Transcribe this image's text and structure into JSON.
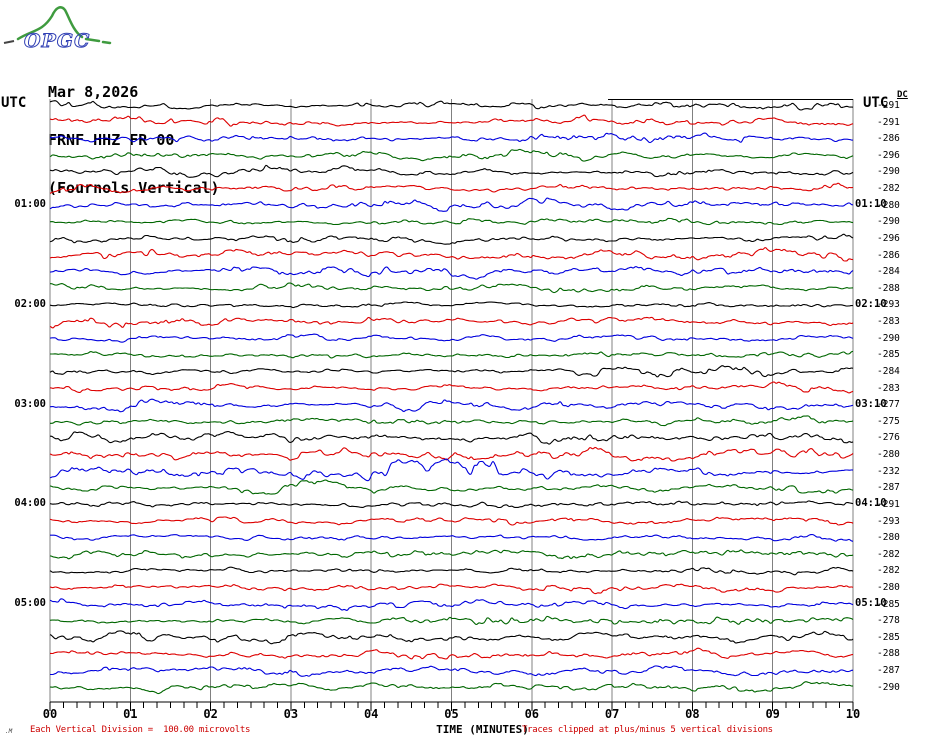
{
  "logo": {
    "text": "OPGC"
  },
  "header": {
    "date": "Mar 8,2026",
    "station": "FRNF HHZ FR 00",
    "location": "(Fournols Vertical)"
  },
  "axis": {
    "utc_left": "UTC",
    "utc_right": "UTC",
    "dc_label": "DC",
    "x_title": "TIME (MINUTES)",
    "x_ticks": [
      "00",
      "01",
      "02",
      "03",
      "04",
      "05",
      "06",
      "07",
      "08",
      "09",
      "10"
    ],
    "minor_ticks_per_major": 5
  },
  "footer": {
    "left": "Each Vertical Division =  100.00 microvolts",
    "right": "Traces clipped at plus/minus 5 vertical divisions",
    "mark": ".M"
  },
  "chart_data": {
    "type": "line",
    "kind": "helicorder-seismogram",
    "title": "FRNF HHZ FR 00 (Fournols Vertical), Mar 8,2026",
    "xlabel": "TIME (MINUTES)",
    "x_range_minutes": [
      0,
      10
    ],
    "row_duration_minutes": 10,
    "rows_total": 36,
    "grid": true,
    "grid_color": "#808080",
    "palette": [
      "#000000",
      "#dd0000",
      "#0000dd",
      "#006600"
    ],
    "partial_top_trace": {
      "start_minute": 6.95,
      "end_minute": 10,
      "flat": true
    },
    "rows": [
      {
        "c": 0,
        "dc": -291,
        "amp": 5.2,
        "seed": 11
      },
      {
        "c": 1,
        "dc": -291,
        "amp": 5.8,
        "seed": 22
      },
      {
        "c": 2,
        "dc": -286,
        "amp": 6.0,
        "seed": 33
      },
      {
        "c": 3,
        "dc": -296,
        "amp": 5.6,
        "seed": 44
      },
      {
        "c": 0,
        "dc": -290,
        "amp": 5.0,
        "seed": 55
      },
      {
        "c": 1,
        "dc": -282,
        "amp": 6.2,
        "seed": 66,
        "bursts": [
          [
            1.7,
            3.6,
            4
          ]
        ]
      },
      {
        "c": 2,
        "dc": -280,
        "amp": 6.4,
        "seed": 77,
        "left": "01:00",
        "right": "01:10",
        "bursts": [
          [
            5.2,
            7.3,
            4
          ]
        ]
      },
      {
        "c": 3,
        "dc": -290,
        "amp": 5.2,
        "seed": 88
      },
      {
        "c": 0,
        "dc": -296,
        "amp": 5.8,
        "seed": 99
      },
      {
        "c": 1,
        "dc": -286,
        "amp": 6.4,
        "seed": 110,
        "bursts": [
          [
            0.0,
            2.2,
            5
          ]
        ]
      },
      {
        "c": 2,
        "dc": -284,
        "amp": 6.0,
        "seed": 121,
        "bursts": [
          [
            2.6,
            4.4,
            4
          ]
        ]
      },
      {
        "c": 3,
        "dc": -288,
        "amp": 5.4,
        "seed": 132
      },
      {
        "c": 0,
        "dc": -293,
        "amp": 4.6,
        "seed": 143,
        "left": "02:00",
        "right": "02:10"
      },
      {
        "c": 1,
        "dc": -283,
        "amp": 5.6,
        "seed": 154
      },
      {
        "c": 2,
        "dc": -290,
        "amp": 5.2,
        "seed": 165
      },
      {
        "c": 3,
        "dc": -285,
        "amp": 5.2,
        "seed": 176
      },
      {
        "c": 0,
        "dc": -284,
        "amp": 6.4,
        "seed": 187,
        "bursts": [
          [
            5.6,
            7.9,
            4
          ]
        ]
      },
      {
        "c": 1,
        "dc": -283,
        "amp": 5.6,
        "seed": 198
      },
      {
        "c": 2,
        "dc": -277,
        "amp": 5.8,
        "seed": 209,
        "left": "03:00",
        "right": "03:10"
      },
      {
        "c": 3,
        "dc": -275,
        "amp": 5.8,
        "seed": 220
      },
      {
        "c": 0,
        "dc": -276,
        "amp": 6.6,
        "seed": 231,
        "bursts": [
          [
            5.3,
            7.2,
            5
          ]
        ]
      },
      {
        "c": 1,
        "dc": -280,
        "amp": 7.0,
        "seed": 242,
        "bursts": [
          [
            2.3,
            4.6,
            5
          ]
        ]
      },
      {
        "c": 2,
        "dc": -232,
        "amp": 8.0,
        "seed": 253,
        "bursts": [
          [
            2.0,
            7.6,
            13
          ]
        ]
      },
      {
        "c": 3,
        "dc": -287,
        "amp": 6.6,
        "seed": 264,
        "bursts": [
          [
            1.8,
            6.0,
            4
          ]
        ]
      },
      {
        "c": 0,
        "dc": -291,
        "amp": 5.6,
        "seed": 275,
        "left": "04:00",
        "right": "04:10"
      },
      {
        "c": 1,
        "dc": -293,
        "amp": 5.6,
        "seed": 286,
        "bursts": [
          [
            1.4,
            3.0,
            4
          ]
        ]
      },
      {
        "c": 2,
        "dc": -280,
        "amp": 5.2,
        "seed": 297
      },
      {
        "c": 3,
        "dc": -282,
        "amp": 5.4,
        "seed": 308
      },
      {
        "c": 0,
        "dc": -282,
        "amp": 5.0,
        "seed": 319
      },
      {
        "c": 1,
        "dc": -280,
        "amp": 5.4,
        "seed": 330,
        "bursts": [
          [
            3.7,
            5.6,
            4
          ]
        ]
      },
      {
        "c": 2,
        "dc": -285,
        "amp": 5.8,
        "seed": 341,
        "left": "05:00",
        "right": "05:10"
      },
      {
        "c": 3,
        "dc": -278,
        "amp": 6.0,
        "seed": 352,
        "bursts": [
          [
            4.3,
            5.8,
            4
          ]
        ]
      },
      {
        "c": 0,
        "dc": -285,
        "amp": 5.8,
        "seed": 363
      },
      {
        "c": 1,
        "dc": -288,
        "amp": 5.6,
        "seed": 374,
        "bursts": [
          [
            4.0,
            6.2,
            4
          ]
        ]
      },
      {
        "c": 2,
        "dc": -287,
        "amp": 5.6,
        "seed": 385
      },
      {
        "c": 3,
        "dc": -290,
        "amp": 5.4,
        "seed": 396
      }
    ]
  }
}
